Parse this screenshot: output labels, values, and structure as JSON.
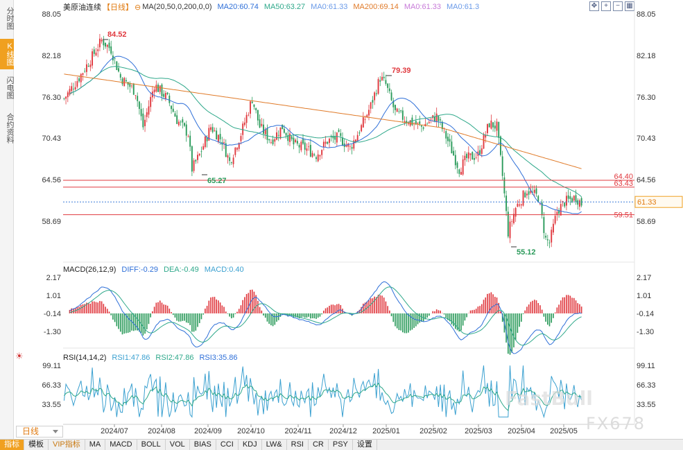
{
  "left_tabs": [
    {
      "label": "分时图",
      "active": false
    },
    {
      "label": "K线图",
      "active": true
    },
    {
      "label": "闪电图",
      "active": false
    },
    {
      "label": "合约资料",
      "active": false
    }
  ],
  "header": {
    "symbol": "美原油连续",
    "period": "【日线】",
    "ma_params": "MA(20,50,0,200,0,0)",
    "ma_values": [
      "MA20:60.74",
      "MA50:63.27",
      "MA0:61.33",
      "MA200:69.14",
      "MA0:61.33",
      "MA0:61.3"
    ]
  },
  "top_icons": [
    "fullscreen-icon",
    "add-icon",
    "minus-icon",
    "grid-icon"
  ],
  "price_axis": {
    "left_ticks": [
      "88.05",
      "82.18",
      "76.30",
      "70.43",
      "64.56",
      "58.69"
    ],
    "right_ticks": [
      "88.05",
      "82.18",
      "76.30",
      "70.43",
      "64.56",
      "58.69"
    ],
    "last_price_label": "61.33"
  },
  "annotations": {
    "high": "84.52",
    "peak2": "79.39",
    "low1": "65.27",
    "low2": "55.12"
  },
  "levels": [
    "64.40",
    "63.43",
    "59.51"
  ],
  "macd": {
    "title": "MACD(26,12,9)",
    "diff": "DIFF:-0.29",
    "dea": "DEA:-0.49",
    "macd": "MACD:0.40",
    "ticks": [
      "2.17",
      "1.01",
      "-0.14",
      "-1.30"
    ]
  },
  "rsi": {
    "title": "RSI(14,14,2)",
    "rsi1": "RSI1:47.86",
    "rsi2": "RSI2:47.86",
    "rsi3": "RSI3:35.86",
    "ticks": [
      "99.11",
      "66.33",
      "33.55"
    ]
  },
  "x_axis": [
    "2024/07",
    "2024/08",
    "2024/09",
    "2024/10",
    "2024/11",
    "2024/12",
    "2025/01",
    "2025/02",
    "2025/03",
    "2025/04",
    "2025/05"
  ],
  "period_selector": "日线",
  "bottom_tabs": [
    "指标",
    "模板",
    "VIP指标",
    "MA",
    "MACD",
    "BOLL",
    "VOL",
    "BIAS",
    "CCI",
    "KDJ",
    "LW&",
    "RSI",
    "CR",
    "PSY",
    "设置"
  ],
  "watermark": "FX678",
  "watermark_logo": "FastBull",
  "colors": {
    "up": "#e0383e",
    "down": "#2a9a5a",
    "ma20": "#2e6fd8",
    "ma50": "#2ea88a",
    "ma200": "#e07a28",
    "level_line": "#e0383e",
    "last_price": "#3a7ad8"
  }
}
